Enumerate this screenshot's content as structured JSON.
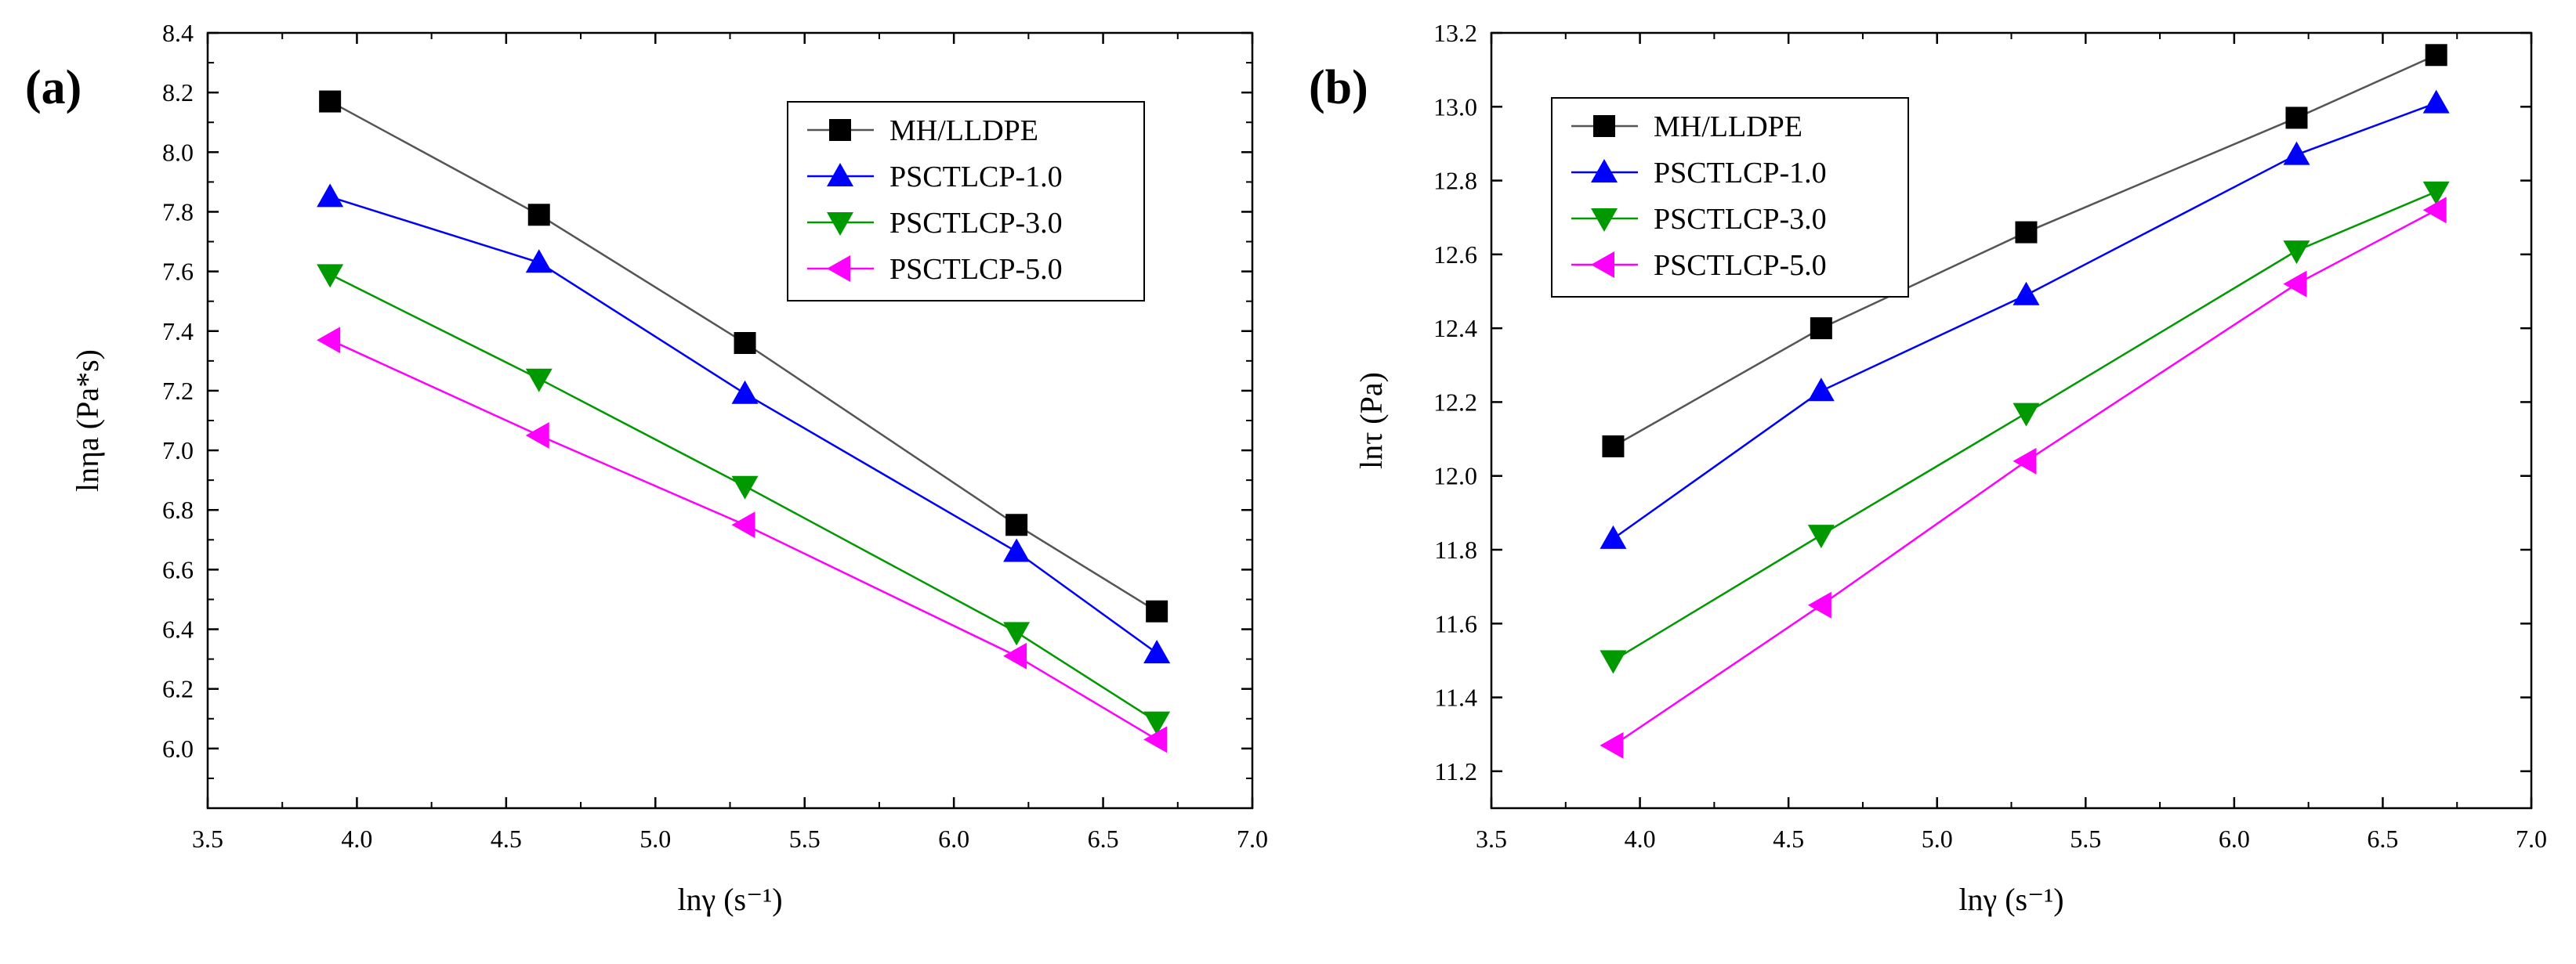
{
  "colors": {
    "MH/LLDPE": "#000000",
    "PSCTLCP-1.0": "#0000ff",
    "PSCTLCP-3.0": "#009900",
    "PSCTLCP-5.0": "#ff00ff",
    "line_gray": "#555555"
  },
  "chart_data": [
    {
      "type": "line",
      "panel_label": "(a)",
      "xlabel": "lnγ (s⁻¹)",
      "ylabel": "lnηa (Pa*s)",
      "xlim": [
        3.5,
        7.0
      ],
      "ylim": [
        5.8,
        8.4
      ],
      "xticks": [
        3.5,
        4.0,
        4.5,
        5.0,
        5.5,
        6.0,
        6.5,
        7.0
      ],
      "yticks": [
        6.0,
        6.2,
        6.4,
        6.6,
        6.8,
        7.0,
        7.2,
        7.4,
        7.6,
        7.8,
        8.0,
        8.2,
        8.4
      ],
      "legend_position": "top-right",
      "x": [
        3.91,
        4.61,
        5.3,
        6.21,
        6.68
      ],
      "series": [
        {
          "name": "MH/LLDPE",
          "marker": "square",
          "values": [
            8.17,
            7.79,
            7.36,
            6.75,
            6.46
          ]
        },
        {
          "name": "PSCTLCP-1.0",
          "marker": "triangle-up",
          "values": [
            7.85,
            7.63,
            7.19,
            6.66,
            6.32
          ]
        },
        {
          "name": "PSCTLCP-3.0",
          "marker": "triangle-down",
          "values": [
            7.59,
            7.24,
            6.88,
            6.39,
            6.09
          ]
        },
        {
          "name": "PSCTLCP-5.0",
          "marker": "triangle-left",
          "values": [
            7.37,
            7.05,
            6.75,
            6.31,
            6.03
          ]
        }
      ]
    },
    {
      "type": "line",
      "panel_label": "(b)",
      "xlabel": "lnγ (s⁻¹)",
      "ylabel": "lnτ (Pa)",
      "xlim": [
        3.5,
        7.0
      ],
      "ylim": [
        11.1,
        13.2
      ],
      "xticks": [
        3.5,
        4.0,
        4.5,
        5.0,
        5.5,
        6.0,
        6.5,
        7.0
      ],
      "yticks": [
        11.2,
        11.4,
        11.6,
        11.8,
        12.0,
        12.2,
        12.4,
        12.6,
        12.8,
        13.0,
        13.2
      ],
      "legend_position": "top-left",
      "x": [
        3.91,
        4.61,
        5.3,
        6.21,
        6.68
      ],
      "series": [
        {
          "name": "MH/LLDPE",
          "marker": "square",
          "values": [
            12.08,
            12.4,
            12.66,
            12.97,
            13.14
          ]
        },
        {
          "name": "PSCTLCP-1.0",
          "marker": "triangle-up",
          "values": [
            11.83,
            12.23,
            12.49,
            12.87,
            13.01
          ]
        },
        {
          "name": "PSCTLCP-3.0",
          "marker": "triangle-down",
          "values": [
            11.5,
            11.84,
            12.17,
            12.61,
            12.77
          ]
        },
        {
          "name": "PSCTLCP-5.0",
          "marker": "triangle-left",
          "values": [
            11.27,
            11.65,
            12.04,
            12.52,
            12.72
          ]
        }
      ]
    }
  ]
}
